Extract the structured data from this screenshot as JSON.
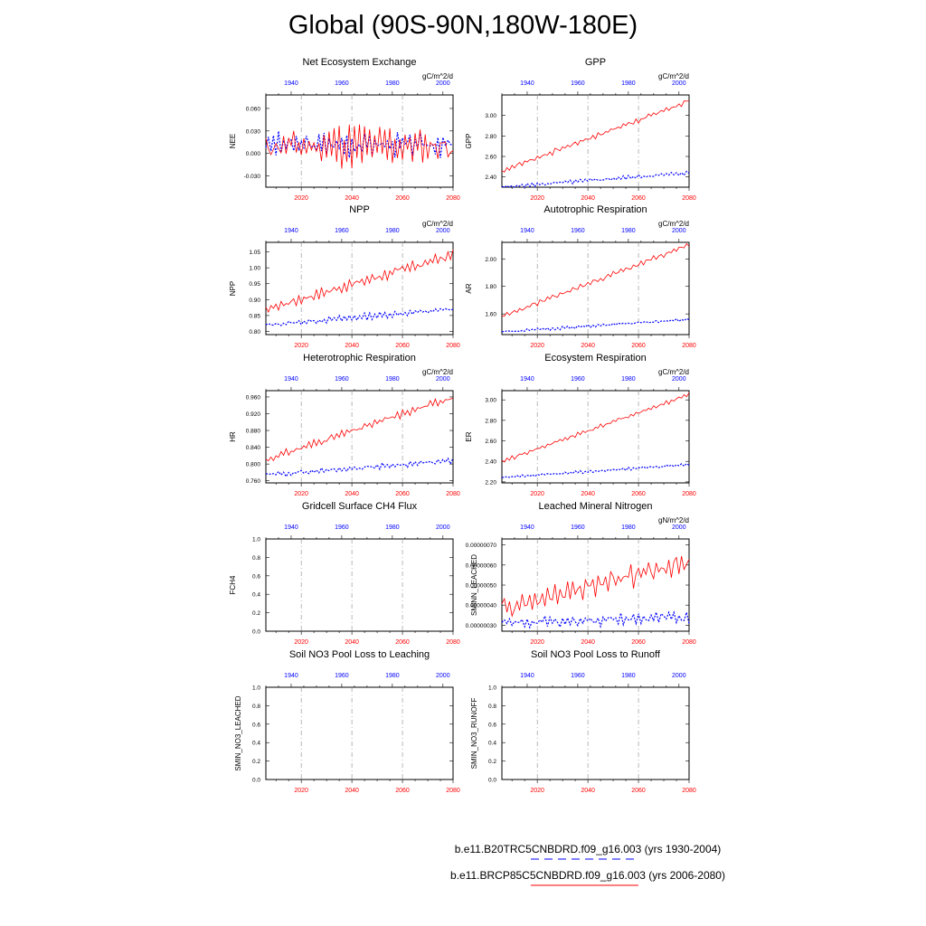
{
  "page_title": "Global (90S-90N,180W-180E)",
  "colors": {
    "hist": "#0000ff",
    "future": "#ff0000",
    "grid": "#888888"
  },
  "legend": [
    {
      "label": "b.e11.B20TRC5CNBDRD.f09_g16.003 (yrs 1930-2004)",
      "color": "#0000ff",
      "style": "dashed"
    },
    {
      "label": "b.e11.BRCP85C5CNBDRD.f09_g16.003 (yrs 2006-2080)",
      "color": "#ff0000",
      "style": "solid"
    }
  ],
  "chart_data": [
    {
      "type": "line",
      "title": "Net Ecosystem Exchange",
      "units": "gC/m^2/d",
      "ylabel": "NEE",
      "ylim": [
        -0.045,
        0.078
      ],
      "yticks": [
        "0.060",
        "0.030",
        "0.000",
        "-0.030"
      ],
      "ytick_values": [
        0.06,
        0.03,
        0,
        -0.03
      ],
      "top_axis": {
        "label_values": [
          1940,
          1960,
          1980,
          2000
        ],
        "range": [
          1930,
          2004
        ]
      },
      "bottom_axis": {
        "label_values": [
          2020,
          2040,
          2060,
          2080
        ],
        "range": [
          2006,
          2080
        ]
      },
      "series": [
        {
          "name": "historical",
          "trend": [
            0.012,
            0.012
          ],
          "noise": 0.016,
          "seed": 3,
          "osc": 2.8
        },
        {
          "name": "future",
          "trend": [
            0.01,
            0.01
          ],
          "noise": 0.028,
          "seed": 11,
          "osc": 3.1
        }
      ]
    },
    {
      "type": "line",
      "title": "GPP",
      "units": "gC/m^2/d",
      "ylabel": "GPP",
      "ylim": [
        2.3,
        3.2
      ],
      "yticks": [
        "3.00",
        "2.80",
        "2.60",
        "2.40"
      ],
      "ytick_values": [
        3.0,
        2.8,
        2.6,
        2.4
      ],
      "top_axis": {
        "label_values": [
          1940,
          1960,
          1980,
          2000
        ],
        "range": [
          1930,
          2004
        ]
      },
      "bottom_axis": {
        "label_values": [
          2020,
          2040,
          2060,
          2080
        ],
        "range": [
          2006,
          2080
        ]
      },
      "series": [
        {
          "name": "historical",
          "trend": [
            2.3,
            2.44
          ],
          "noise": 0.02,
          "seed": 5,
          "osc": 3.3
        },
        {
          "name": "future",
          "trend": [
            2.46,
            3.14
          ],
          "noise": 0.03,
          "seed": 7,
          "osc": 3.7
        }
      ]
    },
    {
      "type": "line",
      "title": "NPP",
      "units": "gC/m^2/d",
      "ylabel": "NPP",
      "ylim": [
        0.79,
        1.08
      ],
      "yticks": [
        "1.05",
        "1.00",
        "0.95",
        "0.90",
        "0.85",
        "0.80"
      ],
      "ytick_values": [
        1.05,
        1.0,
        0.95,
        0.9,
        0.85,
        0.8
      ],
      "top_axis": {
        "label_values": [
          1940,
          1960,
          1980,
          2000
        ],
        "range": [
          1930,
          2004
        ]
      },
      "bottom_axis": {
        "label_values": [
          2020,
          2040,
          2060,
          2080
        ],
        "range": [
          2006,
          2080
        ]
      },
      "series": [
        {
          "name": "historical",
          "trend": [
            0.82,
            0.87
          ],
          "noise": 0.01,
          "seed": 13,
          "osc": 3.1
        },
        {
          "name": "future",
          "trend": [
            0.87,
            1.04
          ],
          "noise": 0.018,
          "seed": 17,
          "osc": 3.5
        }
      ]
    },
    {
      "type": "line",
      "title": "Autotrophic Respiration",
      "units": "gC/m^2/d",
      "ylabel": "AR",
      "ylim": [
        1.45,
        2.12
      ],
      "yticks": [
        "2.00",
        "1.80",
        "1.60"
      ],
      "ytick_values": [
        2.0,
        1.8,
        1.6
      ],
      "top_axis": {
        "label_values": [
          1940,
          1960,
          1980,
          2000
        ],
        "range": [
          1930,
          2004
        ]
      },
      "bottom_axis": {
        "label_values": [
          2020,
          2040,
          2060,
          2080
        ],
        "range": [
          2006,
          2080
        ]
      },
      "series": [
        {
          "name": "historical",
          "trend": [
            1.47,
            1.56
          ],
          "noise": 0.012,
          "seed": 19,
          "osc": 3.2
        },
        {
          "name": "future",
          "trend": [
            1.58,
            2.1
          ],
          "noise": 0.02,
          "seed": 23,
          "osc": 3.9
        }
      ]
    },
    {
      "type": "line",
      "title": "Heterotrophic Respiration",
      "units": "gC/m^2/d",
      "ylabel": "HR",
      "ylim": [
        0.755,
        0.975
      ],
      "yticks": [
        "0.960",
        "0.920",
        "0.880",
        "0.840",
        "0.800",
        "0.760"
      ],
      "ytick_values": [
        0.96,
        0.92,
        0.88,
        0.84,
        0.8,
        0.76
      ],
      "top_axis": {
        "label_values": [
          1940,
          1960,
          1980,
          2000
        ],
        "range": [
          1930,
          2004
        ]
      },
      "bottom_axis": {
        "label_values": [
          2020,
          2040,
          2060,
          2080
        ],
        "range": [
          2006,
          2080
        ]
      },
      "series": [
        {
          "name": "historical",
          "trend": [
            0.774,
            0.808
          ],
          "noise": 0.007,
          "seed": 29,
          "osc": 2.9
        },
        {
          "name": "future",
          "trend": [
            0.81,
            0.96
          ],
          "noise": 0.01,
          "seed": 31,
          "osc": 3.4
        }
      ]
    },
    {
      "type": "line",
      "title": "Ecosystem Respiration",
      "units": "gC/m^2/d",
      "ylabel": "ER",
      "ylim": [
        2.19,
        3.09
      ],
      "yticks": [
        "3.00",
        "2.80",
        "2.60",
        "2.40",
        "2.20"
      ],
      "ytick_values": [
        3.0,
        2.8,
        2.6,
        2.4,
        2.2
      ],
      "top_axis": {
        "label_values": [
          1940,
          1960,
          1980,
          2000
        ],
        "range": [
          1930,
          2004
        ]
      },
      "bottom_axis": {
        "label_values": [
          2020,
          2040,
          2060,
          2080
        ],
        "range": [
          2006,
          2080
        ]
      },
      "series": [
        {
          "name": "historical",
          "trend": [
            2.24,
            2.37
          ],
          "noise": 0.015,
          "seed": 37,
          "osc": 3.3
        },
        {
          "name": "future",
          "trend": [
            2.4,
            3.05
          ],
          "noise": 0.025,
          "seed": 41,
          "osc": 3.6
        }
      ]
    },
    {
      "type": "line",
      "title": "Gridcell Surface CH4 Flux",
      "units": "",
      "ylabel": "FCH4",
      "ylim": [
        0,
        1
      ],
      "yticks": [
        "1.0",
        "0.8",
        "0.6",
        "0.4",
        "0.2",
        "0.0"
      ],
      "ytick_values": [
        1.0,
        0.8,
        0.6,
        0.4,
        0.2,
        0.0
      ],
      "top_axis": {
        "label_values": [
          1940,
          1960,
          1980,
          2000
        ],
        "range": [
          1930,
          2004
        ]
      },
      "bottom_axis": {
        "label_values": [
          2020,
          2040,
          2060,
          2080
        ],
        "range": [
          2006,
          2080
        ]
      },
      "series": []
    },
    {
      "type": "line",
      "title": "Leached Mineral Nitrogen",
      "units": "gN/m^2/d",
      "ylabel": "SMINN_LEACHED",
      "ylim": [
        2.7e-07,
        7.3e-07
      ],
      "yticks": [
        "0.00000070",
        "0.00000060",
        "0.00000050",
        "0.00000040",
        "0.00000030"
      ],
      "ytick_values": [
        7e-07,
        6e-07,
        5e-07,
        4e-07,
        3e-07
      ],
      "top_axis": {
        "label_values": [
          1940,
          1960,
          1980,
          2000
        ],
        "range": [
          1930,
          2004
        ]
      },
      "bottom_axis": {
        "label_values": [
          2020,
          2040,
          2060,
          2080
        ],
        "range": [
          2006,
          2080
        ]
      },
      "series": [
        {
          "name": "historical",
          "trend": [
            3.1e-07,
            3.4e-07
          ],
          "noise": 3e-08,
          "seed": 43,
          "osc": 2.7
        },
        {
          "name": "future",
          "trend": [
            3.8e-07,
            6.2e-07
          ],
          "noise": 6e-08,
          "seed": 47,
          "osc": 2.5
        }
      ]
    },
    {
      "type": "line",
      "title": "Soil NO3 Pool Loss to Leaching",
      "units": "",
      "ylabel": "SMIN_NO3_LEACHED",
      "ylim": [
        0,
        1
      ],
      "yticks": [
        "1.0",
        "0.8",
        "0.6",
        "0.4",
        "0.2",
        "0.0"
      ],
      "ytick_values": [
        1.0,
        0.8,
        0.6,
        0.4,
        0.2,
        0.0
      ],
      "top_axis": {
        "label_values": [
          1940,
          1960,
          1980,
          2000
        ],
        "range": [
          1930,
          2004
        ]
      },
      "bottom_axis": {
        "label_values": [
          2020,
          2040,
          2060,
          2080
        ],
        "range": [
          2006,
          2080
        ]
      },
      "series": []
    },
    {
      "type": "line",
      "title": "Soil NO3 Pool Loss to Runoff",
      "units": "",
      "ylabel": "SMIN_NO3_RUNOFF",
      "ylim": [
        0,
        1
      ],
      "yticks": [
        "1.0",
        "0.8",
        "0.6",
        "0.4",
        "0.2",
        "0.0"
      ],
      "ytick_values": [
        1.0,
        0.8,
        0.6,
        0.4,
        0.2,
        0.0
      ],
      "top_axis": {
        "label_values": [
          1940,
          1960,
          1980,
          2000
        ],
        "range": [
          1930,
          2004
        ]
      },
      "bottom_axis": {
        "label_values": [
          2020,
          2040,
          2060,
          2080
        ],
        "range": [
          2006,
          2080
        ]
      },
      "series": []
    }
  ]
}
